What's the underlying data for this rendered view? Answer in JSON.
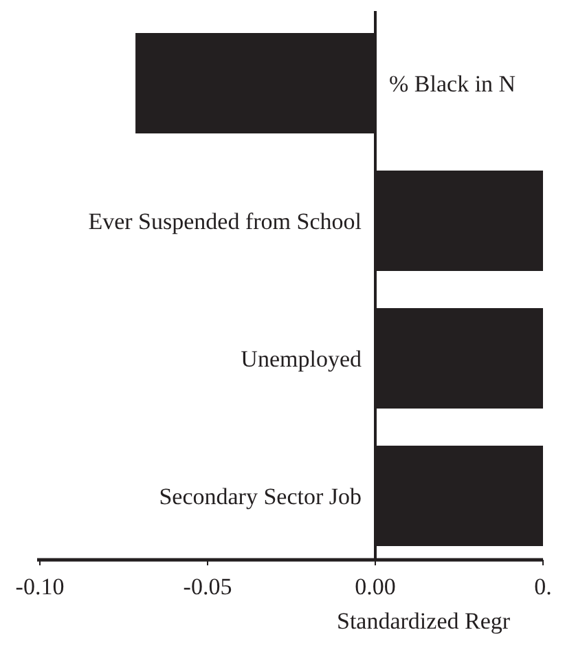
{
  "chart_data": {
    "type": "bar",
    "orientation": "horizontal",
    "xlabel": "Standardized Regr",
    "categories": [
      "% Black in N",
      "Ever Suspended from School",
      "Unemployed",
      "Secondary Sector Job"
    ],
    "values": [
      -0.0715,
      0.05,
      0.05,
      0.05
    ],
    "color": "#231f20",
    "xlim": [
      -0.1,
      0.05
    ],
    "xticks": [
      {
        "value": -0.1,
        "label": "-0.10"
      },
      {
        "value": -0.05,
        "label": "-0.05"
      },
      {
        "value": 0,
        "label": "0.00"
      },
      {
        "value": 0.05,
        "label": "0."
      }
    ],
    "grid": false
  }
}
